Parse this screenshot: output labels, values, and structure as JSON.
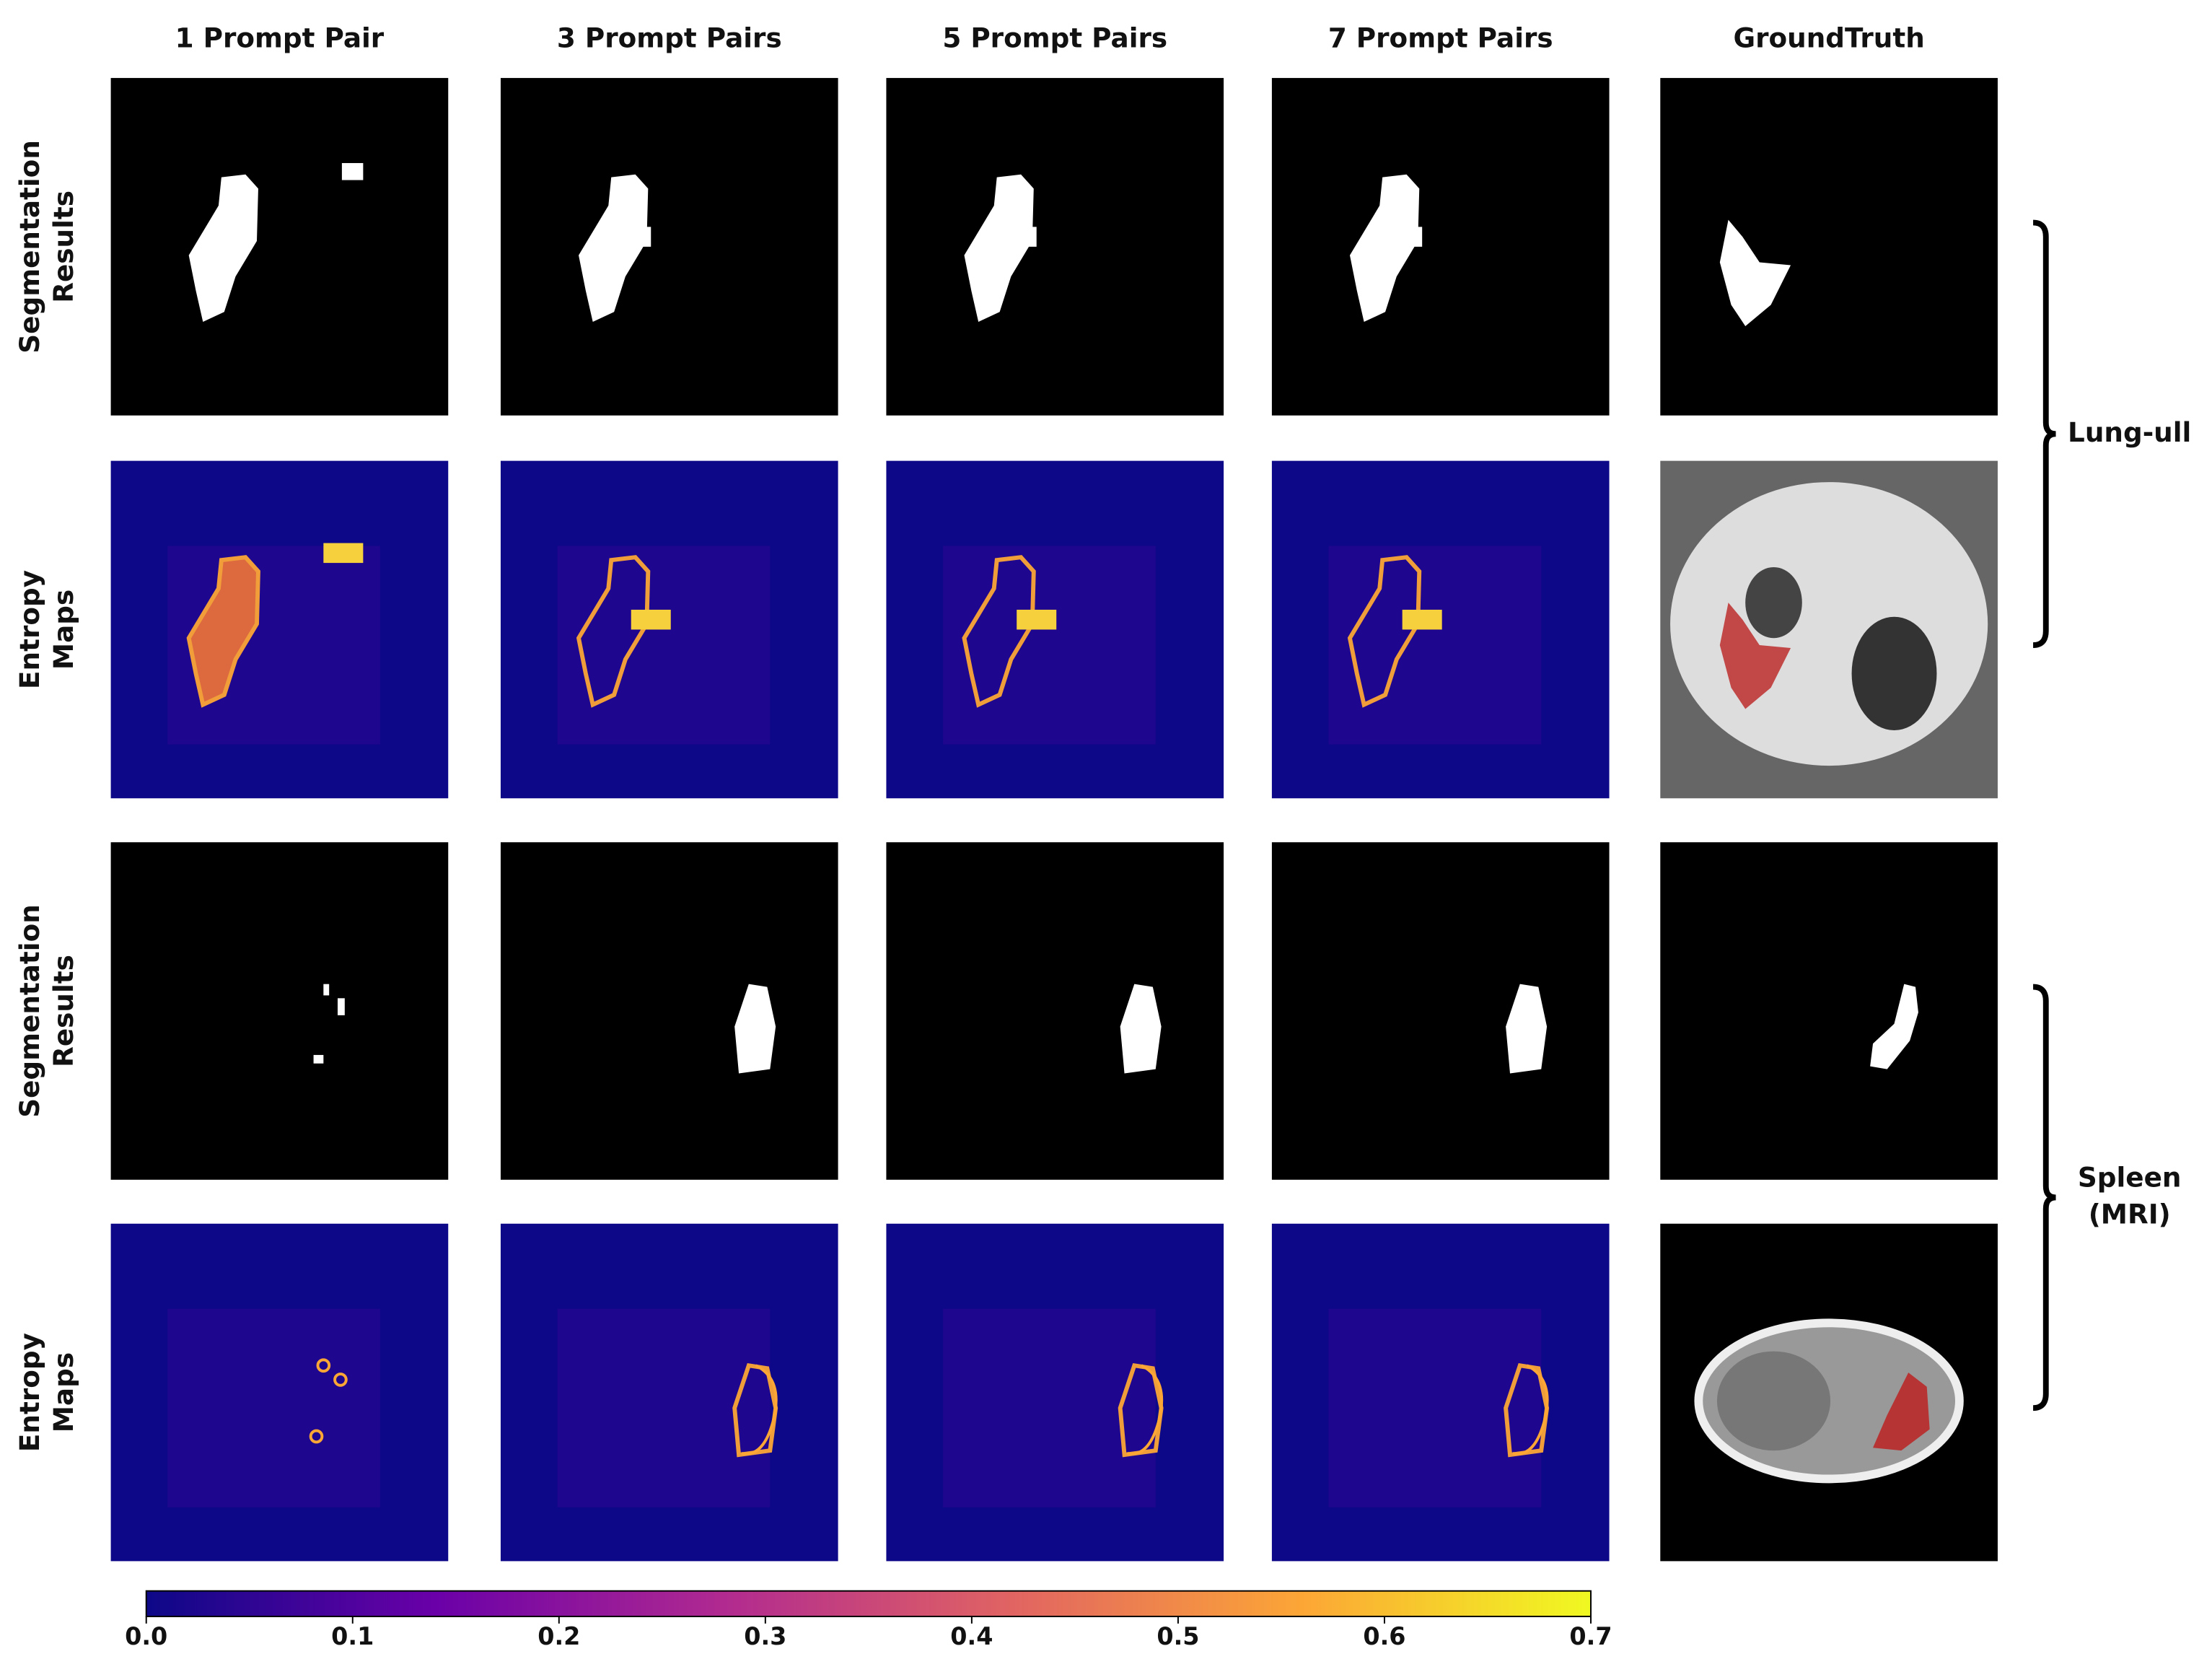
{
  "columns": [
    "1 Prompt Pair",
    "3 Prompt Pairs",
    "5 Prompt Pairs",
    "7 Prompt Pairs",
    "GroundTruth"
  ],
  "groups": [
    {
      "label": [
        "Lung-ull"
      ],
      "rows": [
        [
          "Segmentation",
          "Results"
        ],
        [
          "Entropy",
          "Maps"
        ]
      ]
    },
    {
      "label": [
        "Spleen",
        "(MRI)"
      ],
      "rows": [
        [
          "Segmentation",
          "Results"
        ],
        [
          "Entropy",
          "Maps"
        ]
      ]
    }
  ],
  "colorbar": {
    "lim": [
      0,
      0.7
    ],
    "ticks": [
      {
        "value": 0,
        "label": "0.0"
      },
      0.1,
      0.2,
      0.3,
      0.4,
      0.5,
      0.6,
      0.7
    ]
  }
}
